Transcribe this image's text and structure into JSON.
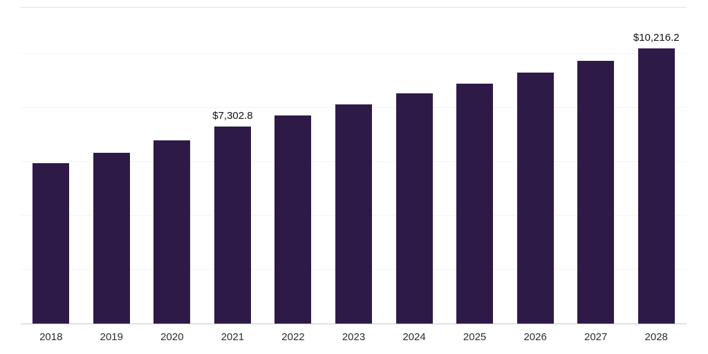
{
  "chart_data": {
    "type": "bar",
    "title": "",
    "xlabel": "",
    "ylabel": "",
    "categories": [
      "2018",
      "2019",
      "2020",
      "2021",
      "2022",
      "2023",
      "2024",
      "2025",
      "2026",
      "2027",
      "2028"
    ],
    "values": [
      5950,
      6340,
      6800,
      7302.8,
      7720,
      8130,
      8540,
      8900,
      9310,
      9750,
      10216.2
    ],
    "data_labels": [
      "",
      "",
      "",
      "$7,302.8",
      "",
      "",
      "",
      "",
      "",
      "",
      "$10,216.2"
    ],
    "labeled_points": [
      {
        "category": "2021",
        "label": "$7,302.8",
        "value": 7302.8
      },
      {
        "category": "2028",
        "label": "$10,216.2",
        "value": 10216.2
      }
    ],
    "bar_color": "#2E1A47",
    "ylim": [
      0,
      11750
    ],
    "gridline_step": 2000,
    "grid": true,
    "legend": "none"
  }
}
